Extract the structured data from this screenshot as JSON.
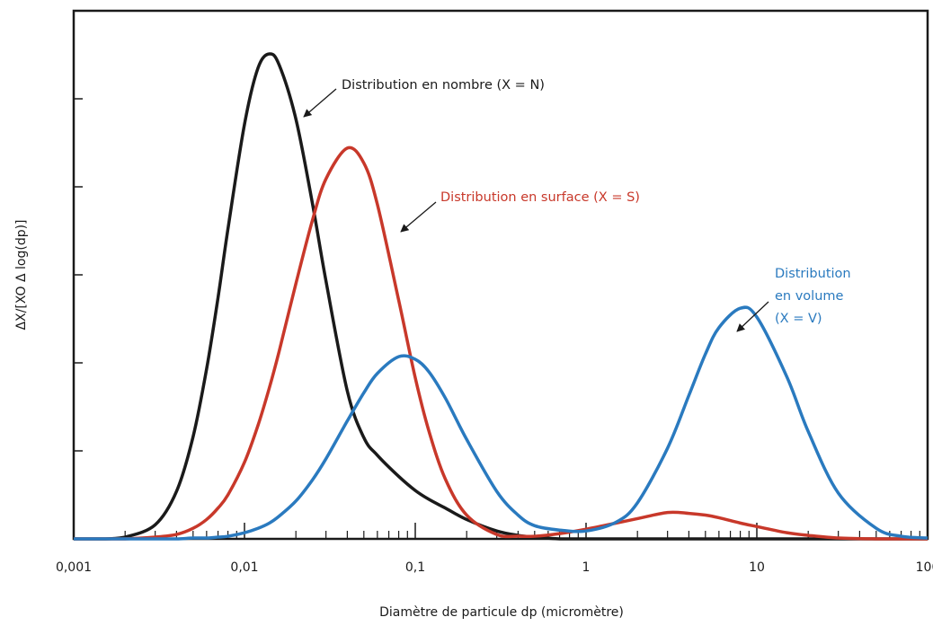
{
  "chart_data": {
    "type": "line",
    "xlabel": "Diamètre de particule dp (micromètre)",
    "ylabel": "ΔX/[XO Δ log(dp)]",
    "xscale": "log",
    "xlim": [
      0.001,
      100
    ],
    "ylim": [
      0,
      6
    ],
    "xticks": [
      {
        "value": 0.001,
        "label": "0,001"
      },
      {
        "value": 0.01,
        "label": "0,01"
      },
      {
        "value": 0.1,
        "label": "0,1"
      },
      1,
      10,
      100
    ],
    "xminorticks": [
      0.002,
      0.003,
      0.004,
      0.005,
      0.006,
      0.007,
      0.008,
      0.009,
      0.02,
      0.03,
      0.04,
      0.05,
      0.06,
      0.07,
      0.08,
      0.09,
      0.2,
      0.3,
      0.4,
      0.5,
      0.6,
      0.7,
      0.8,
      0.9,
      2,
      3,
      4,
      5,
      6,
      7,
      8,
      9,
      20,
      30,
      40,
      50,
      60,
      70,
      80,
      90
    ],
    "yticks": [
      1,
      2,
      3,
      4,
      5
    ],
    "x": [
      0.001,
      0.0015,
      0.002,
      0.003,
      0.004,
      0.005,
      0.006,
      0.007,
      0.008,
      0.01,
      0.012,
      0.014,
      0.016,
      0.02,
      0.025,
      0.03,
      0.04,
      0.05,
      0.06,
      0.08,
      0.1,
      0.12,
      0.15,
      0.2,
      0.3,
      0.4,
      0.5,
      0.7,
      1,
      1.5,
      2,
      3,
      4,
      5,
      6,
      8,
      10,
      15,
      20,
      30,
      50,
      70,
      100
    ],
    "series": [
      {
        "color": "#1a1a1a",
        "annotation": [
          "Distribution en nombre (X = N)"
        ],
        "values": [
          0,
          0,
          0.02,
          0.16,
          0.54,
          1.16,
          1.93,
          2.74,
          3.52,
          4.71,
          5.35,
          5.51,
          5.38,
          4.77,
          3.81,
          2.93,
          1.68,
          1.15,
          0.95,
          0.71,
          0.55,
          0.45,
          0.35,
          0.22,
          0.09,
          0.04,
          0.02,
          0,
          0,
          0,
          0,
          0,
          0,
          0,
          0,
          0,
          0,
          0,
          0,
          0,
          0,
          0,
          0
        ]
      },
      {
        "color": "#c8382a",
        "annotation": [
          "Distribution en surface (X = S)"
        ],
        "values": [
          0,
          0,
          0,
          0.02,
          0.05,
          0.12,
          0.22,
          0.35,
          0.5,
          0.87,
          1.29,
          1.72,
          2.14,
          2.9,
          3.62,
          4.09,
          4.44,
          4.27,
          3.8,
          2.71,
          1.83,
          1.23,
          0.68,
          0.27,
          0.05,
          0.03,
          0.03,
          0.06,
          0.11,
          0.18,
          0.23,
          0.3,
          0.29,
          0.27,
          0.24,
          0.18,
          0.14,
          0.07,
          0.04,
          0.01,
          0,
          0,
          0
        ]
      },
      {
        "color": "#2a7abf",
        "annotation": [
          "Distribution",
          "en volume",
          "(X = V)"
        ],
        "values": [
          0,
          0,
          0,
          0,
          0,
          0.01,
          0.01,
          0.02,
          0.03,
          0.07,
          0.12,
          0.18,
          0.26,
          0.43,
          0.67,
          0.91,
          1.34,
          1.66,
          1.88,
          2.07,
          2.04,
          1.9,
          1.6,
          1.13,
          0.54,
          0.27,
          0.15,
          0.1,
          0.09,
          0.19,
          0.41,
          1.03,
          1.63,
          2.1,
          2.4,
          2.62,
          2.52,
          1.84,
          1.22,
          0.52,
          0.12,
          0.03,
          0.01
        ]
      }
    ]
  }
}
